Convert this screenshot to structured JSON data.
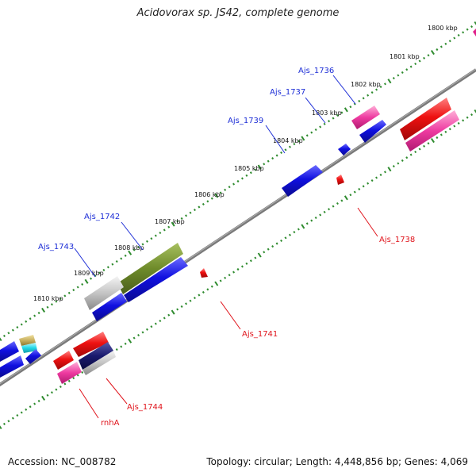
{
  "title": "Acidovorax sp. JS42, complete genome",
  "footer": {
    "accession": "Accession: NC_008782",
    "topology": "Topology: circular; Length: 4,448,856 bp; Genes: 4,069"
  },
  "colors": {
    "backbone": "#808080",
    "tick": "#2e8b2e",
    "forward_label": "#1d2ed6",
    "reverse_label": "#e0141c",
    "gene_blue": "#1010e0",
    "gene_red": "#ee1111",
    "gene_pink": "#ee3aa0",
    "gene_gray": "#b8b8b8",
    "gene_olive": "#6e8b2a",
    "gene_navy": "#1a1a6e",
    "gene_cyan": "#22d8e8",
    "gene_tan": "#c8b060"
  },
  "scale_labels": [
    "1800 kbp",
    "1801 kbp",
    "1802 kbp",
    "1803 kbp",
    "1804 kbp",
    "1805 kbp",
    "1806 kbp",
    "1807 kbp",
    "1808 kbp",
    "1809 kbp",
    "1810 kbp"
  ],
  "forward_genes": [
    "Ajs_1736",
    "Ajs_1737",
    "Ajs_1739",
    "Ajs_1742",
    "Ajs_1743"
  ],
  "reverse_genes": [
    "Ajs_1738",
    "Ajs_1741",
    "Ajs_1744",
    "rnhA"
  ]
}
